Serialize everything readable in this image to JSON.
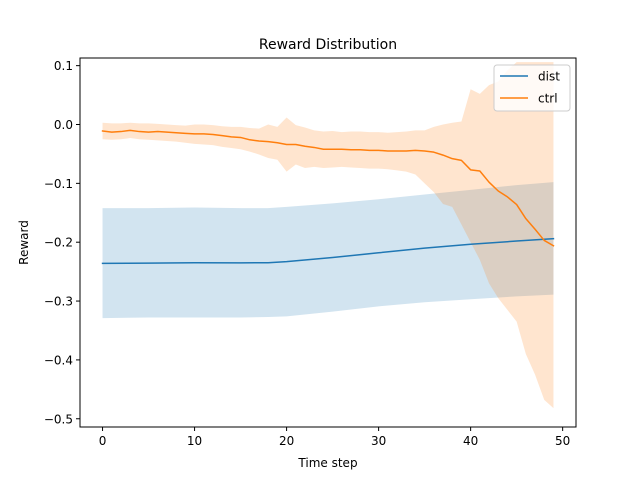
{
  "chart_data": {
    "type": "line",
    "title": "Reward Distribution",
    "xlabel": "Time step",
    "ylabel": "Reward",
    "xlim": [
      -2.45,
      51.45
    ],
    "ylim": [
      -0.514,
      0.113
    ],
    "xticks": [
      0,
      10,
      20,
      30,
      40,
      50
    ],
    "xtick_labels": [
      "0",
      "10",
      "20",
      "30",
      "40",
      "50"
    ],
    "yticks": [
      0.1,
      0.0,
      -0.1,
      -0.2,
      -0.3,
      -0.4,
      -0.5
    ],
    "ytick_labels": [
      "0.1",
      "0.0",
      "−0.1",
      "−0.2",
      "−0.3",
      "−0.4",
      "−0.5"
    ],
    "grid": false,
    "legend_position": "top-right",
    "series": [
      {
        "name": "dist",
        "color": "#1f77b4",
        "band_color": "#1f77b4",
        "band_opacity": 0.2,
        "x": [
          0,
          5,
          10,
          15,
          18,
          20,
          25,
          30,
          35,
          40,
          45,
          49
        ],
        "y": [
          -0.236,
          -0.2355,
          -0.235,
          -0.2352,
          -0.2348,
          -0.233,
          -0.226,
          -0.218,
          -0.21,
          -0.2035,
          -0.198,
          -0.194
        ],
        "lower": [
          -0.329,
          -0.328,
          -0.328,
          -0.328,
          -0.327,
          -0.326,
          -0.318,
          -0.309,
          -0.302,
          -0.297,
          -0.292,
          -0.289
        ],
        "upper": [
          -0.142,
          -0.142,
          -0.141,
          -0.142,
          -0.142,
          -0.14,
          -0.134,
          -0.127,
          -0.119,
          -0.111,
          -0.103,
          -0.098
        ]
      },
      {
        "name": "ctrl",
        "color": "#ff7f0e",
        "band_color": "#ff7f0e",
        "band_opacity": 0.2,
        "x": [
          0,
          1,
          2,
          3,
          4,
          5,
          6,
          7,
          8,
          9,
          10,
          11,
          12,
          13,
          14,
          15,
          16,
          17,
          18,
          19,
          20,
          21,
          22,
          23,
          24,
          25,
          26,
          27,
          28,
          29,
          30,
          31,
          32,
          33,
          34,
          35,
          36,
          37,
          38,
          39,
          40,
          41,
          42,
          43,
          44,
          45,
          46,
          47,
          48,
          49
        ],
        "y": [
          -0.011,
          -0.013,
          -0.012,
          -0.01,
          -0.012,
          -0.013,
          -0.012,
          -0.013,
          -0.014,
          -0.015,
          -0.016,
          -0.016,
          -0.017,
          -0.019,
          -0.021,
          -0.022,
          -0.026,
          -0.028,
          -0.029,
          -0.031,
          -0.034,
          -0.034,
          -0.037,
          -0.039,
          -0.042,
          -0.042,
          -0.042,
          -0.043,
          -0.043,
          -0.044,
          -0.044,
          -0.045,
          -0.045,
          -0.045,
          -0.044,
          -0.045,
          -0.047,
          -0.052,
          -0.058,
          -0.061,
          -0.077,
          -0.079,
          -0.098,
          -0.113,
          -0.123,
          -0.136,
          -0.16,
          -0.178,
          -0.197,
          -0.206
        ],
        "lower": [
          -0.025,
          -0.026,
          -0.025,
          -0.023,
          -0.025,
          -0.026,
          -0.027,
          -0.028,
          -0.029,
          -0.031,
          -0.033,
          -0.034,
          -0.035,
          -0.038,
          -0.04,
          -0.042,
          -0.046,
          -0.051,
          -0.057,
          -0.06,
          -0.08,
          -0.068,
          -0.074,
          -0.072,
          -0.074,
          -0.073,
          -0.072,
          -0.073,
          -0.074,
          -0.075,
          -0.075,
          -0.076,
          -0.078,
          -0.08,
          -0.085,
          -0.1,
          -0.115,
          -0.135,
          -0.14,
          -0.17,
          -0.2,
          -0.23,
          -0.27,
          -0.295,
          -0.315,
          -0.335,
          -0.39,
          -0.425,
          -0.468,
          -0.482
        ],
        "upper": [
          0.003,
          0.002,
          0.002,
          0.003,
          0.002,
          0.002,
          0.001,
          0.0,
          -0.001,
          -0.002,
          0.0,
          0.0,
          -0.001,
          -0.003,
          -0.004,
          -0.004,
          -0.006,
          -0.007,
          0.0,
          -0.004,
          0.012,
          -0.001,
          -0.005,
          -0.01,
          -0.012,
          -0.011,
          -0.013,
          -0.012,
          -0.012,
          -0.013,
          -0.013,
          -0.014,
          -0.013,
          -0.012,
          -0.01,
          -0.01,
          -0.004,
          0.0,
          0.003,
          0.005,
          0.06,
          0.052,
          0.067,
          0.073,
          0.092,
          0.106,
          0.106,
          0.106,
          0.106,
          0.106
        ]
      }
    ]
  }
}
